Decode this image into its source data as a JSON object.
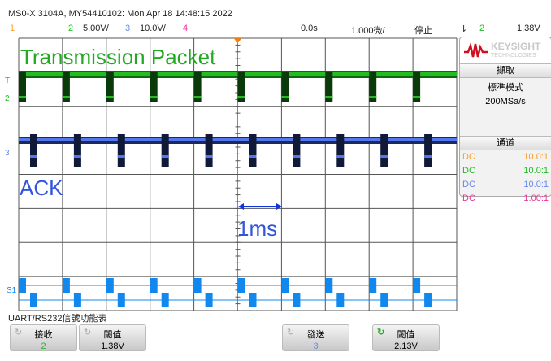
{
  "header": {
    "title": "MS0-X 3104A, MY54410102: Mon Apr 18 14:48:15 2022",
    "ch1": "1",
    "ch2": "2",
    "ch2_scale": "5.00V/",
    "ch3": "3",
    "ch3_scale": "10.0V/",
    "ch4": "4",
    "time_offset": "0.0s",
    "time_scale": "1.000微/",
    "run_state": "停止",
    "trigger_icon": "trigger-edge-icon",
    "trigger_source": "2",
    "trigger_level": "1.38V"
  },
  "colors": {
    "ch1": "#f5a030",
    "ch2": "#22bb22",
    "ch3": "#6688ee",
    "ch4": "#ee3399",
    "serial": "#1188ee",
    "trigger": "#f08010"
  },
  "annotations": {
    "transmission": "Transmission Packet",
    "ack": "ACK",
    "time_mark": "1ms"
  },
  "markers": {
    "trigger": "T",
    "ch2": "2",
    "ch3": "3",
    "serial": "S1"
  },
  "panel": {
    "brand": "KEYSIGHT",
    "brand_sub": "TECHNOLOGIES",
    "acq_title": "擷取",
    "acq_mode": "標準模式",
    "sample_rate": "200MSa/s",
    "ch_title": "通道",
    "channels": [
      {
        "coupling": "DC",
        "probe": "10.0:1"
      },
      {
        "coupling": "DC",
        "probe": "10.0:1"
      },
      {
        "coupling": "DC",
        "probe": "10.0:1"
      },
      {
        "coupling": "DC",
        "probe": "1.00:1"
      }
    ]
  },
  "footer": {
    "menu_title": "UART/RS232信號功能表",
    "buttons": [
      {
        "label": "接收",
        "value": "2"
      },
      {
        "label": "閾值",
        "value": "1.38V"
      },
      {
        "label": "發送",
        "value": "3"
      },
      {
        "label": "閾值",
        "value": "2.13V"
      }
    ]
  }
}
